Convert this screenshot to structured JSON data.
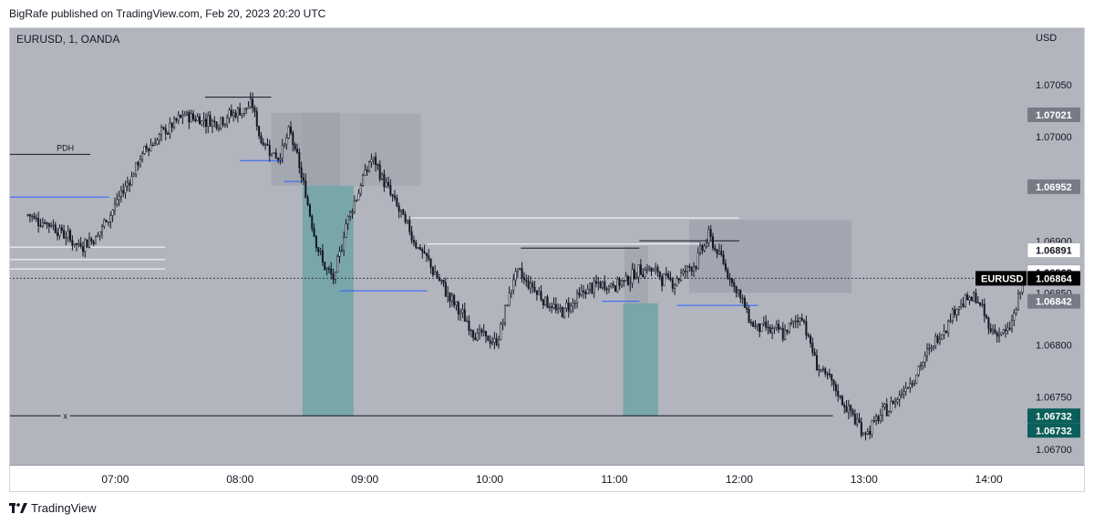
{
  "header": {
    "publish_line": "BigRafe published on TradingView.com, Feb 20, 2023 20:20 UTC"
  },
  "footer": {
    "brand": "TradingView"
  },
  "chart_data": {
    "type": "candlestick",
    "symbol_label": "EURUSD, 1, OANDA",
    "currency": "USD",
    "ylim": [
      1.06685,
      1.07105
    ],
    "x_ticks": [
      "07:00",
      "08:00",
      "09:00",
      "10:00",
      "11:00",
      "12:00",
      "13:00",
      "14:00"
    ],
    "y_ticks": [
      "1.07050",
      "1.07000",
      "1.06950",
      "1.06900",
      "1.06850",
      "1.06800",
      "1.06750",
      "1.06700"
    ],
    "price_tags": [
      {
        "label": "1.07021",
        "value": 1.07021,
        "bg": "#787b86",
        "fg": "#ffffff"
      },
      {
        "label": "1.06952",
        "value": 1.06952,
        "bg": "#787b86",
        "fg": "#ffffff"
      },
      {
        "label": "1.06891",
        "value": 1.06891,
        "bg": "#ffffff",
        "fg": "#131722"
      },
      {
        "label": "1.06868",
        "value": 1.06868,
        "bg": "#ffffff",
        "fg": "#131722"
      },
      {
        "label": "1.06864",
        "value": 1.06864,
        "bg": "#000000",
        "fg": "#ffffff",
        "name": "EURUSD"
      },
      {
        "label": "1.06842",
        "value": 1.06842,
        "bg": "#787b86",
        "fg": "#ffffff"
      },
      {
        "label": "1.06732",
        "value": 1.06732,
        "bg": "#0b5f5a",
        "fg": "#ffffff"
      },
      {
        "label": "1.06732",
        "value": 1.06732,
        "bg": "#0b5f5a",
        "fg": "#ffffff"
      }
    ],
    "annotations": [
      {
        "text": "PDH",
        "value": 1.06983
      },
      {
        "text": "x",
        "value": 1.06732
      }
    ],
    "colors": {
      "background": "#b2b5be",
      "candle": "#131722",
      "blue_level": "#2962ff",
      "teal_zone": "#6fa3a6",
      "gray_zone": "#9a9da6"
    },
    "current_price": 1.06864,
    "anchors": [
      [
        6.3,
        1.06925
      ],
      [
        6.5,
        1.06915
      ],
      [
        6.7,
        1.06895
      ],
      [
        6.85,
        1.06905
      ],
      [
        7.0,
        1.06935
      ],
      [
        7.25,
        1.0699
      ],
      [
        7.55,
        1.0702
      ],
      [
        7.8,
        1.07015
      ],
      [
        8.1,
        1.0703
      ],
      [
        8.15,
        1.07
      ],
      [
        8.3,
        1.0698
      ],
      [
        8.4,
        1.07005
      ],
      [
        8.5,
        1.06955
      ],
      [
        8.65,
        1.0688
      ],
      [
        8.75,
        1.0686
      ],
      [
        8.85,
        1.0692
      ],
      [
        9.05,
        1.0698
      ],
      [
        9.2,
        1.06945
      ],
      [
        9.35,
        1.0691
      ],
      [
        9.5,
        1.0688
      ],
      [
        9.65,
        1.0685
      ],
      [
        9.85,
        1.06815
      ],
      [
        10.05,
        1.068
      ],
      [
        10.2,
        1.0687
      ],
      [
        10.35,
        1.06855
      ],
      [
        10.55,
        1.0683
      ],
      [
        10.8,
        1.06855
      ],
      [
        11.05,
        1.0686
      ],
      [
        11.25,
        1.06875
      ],
      [
        11.45,
        1.0686
      ],
      [
        11.65,
        1.0688
      ],
      [
        11.75,
        1.06905
      ],
      [
        11.95,
        1.0686
      ],
      [
        12.1,
        1.0682
      ],
      [
        12.35,
        1.0681
      ],
      [
        12.5,
        1.0683
      ],
      [
        12.6,
        1.06785
      ],
      [
        12.8,
        1.0675
      ],
      [
        13.0,
        1.06715
      ],
      [
        13.2,
        1.0674
      ],
      [
        13.45,
        1.0678
      ],
      [
        13.6,
        1.0681
      ],
      [
        13.75,
        1.0684
      ],
      [
        13.9,
        1.06845
      ],
      [
        14.0,
        1.06815
      ],
      [
        14.15,
        1.0681
      ],
      [
        14.27,
        1.06858
      ]
    ]
  }
}
